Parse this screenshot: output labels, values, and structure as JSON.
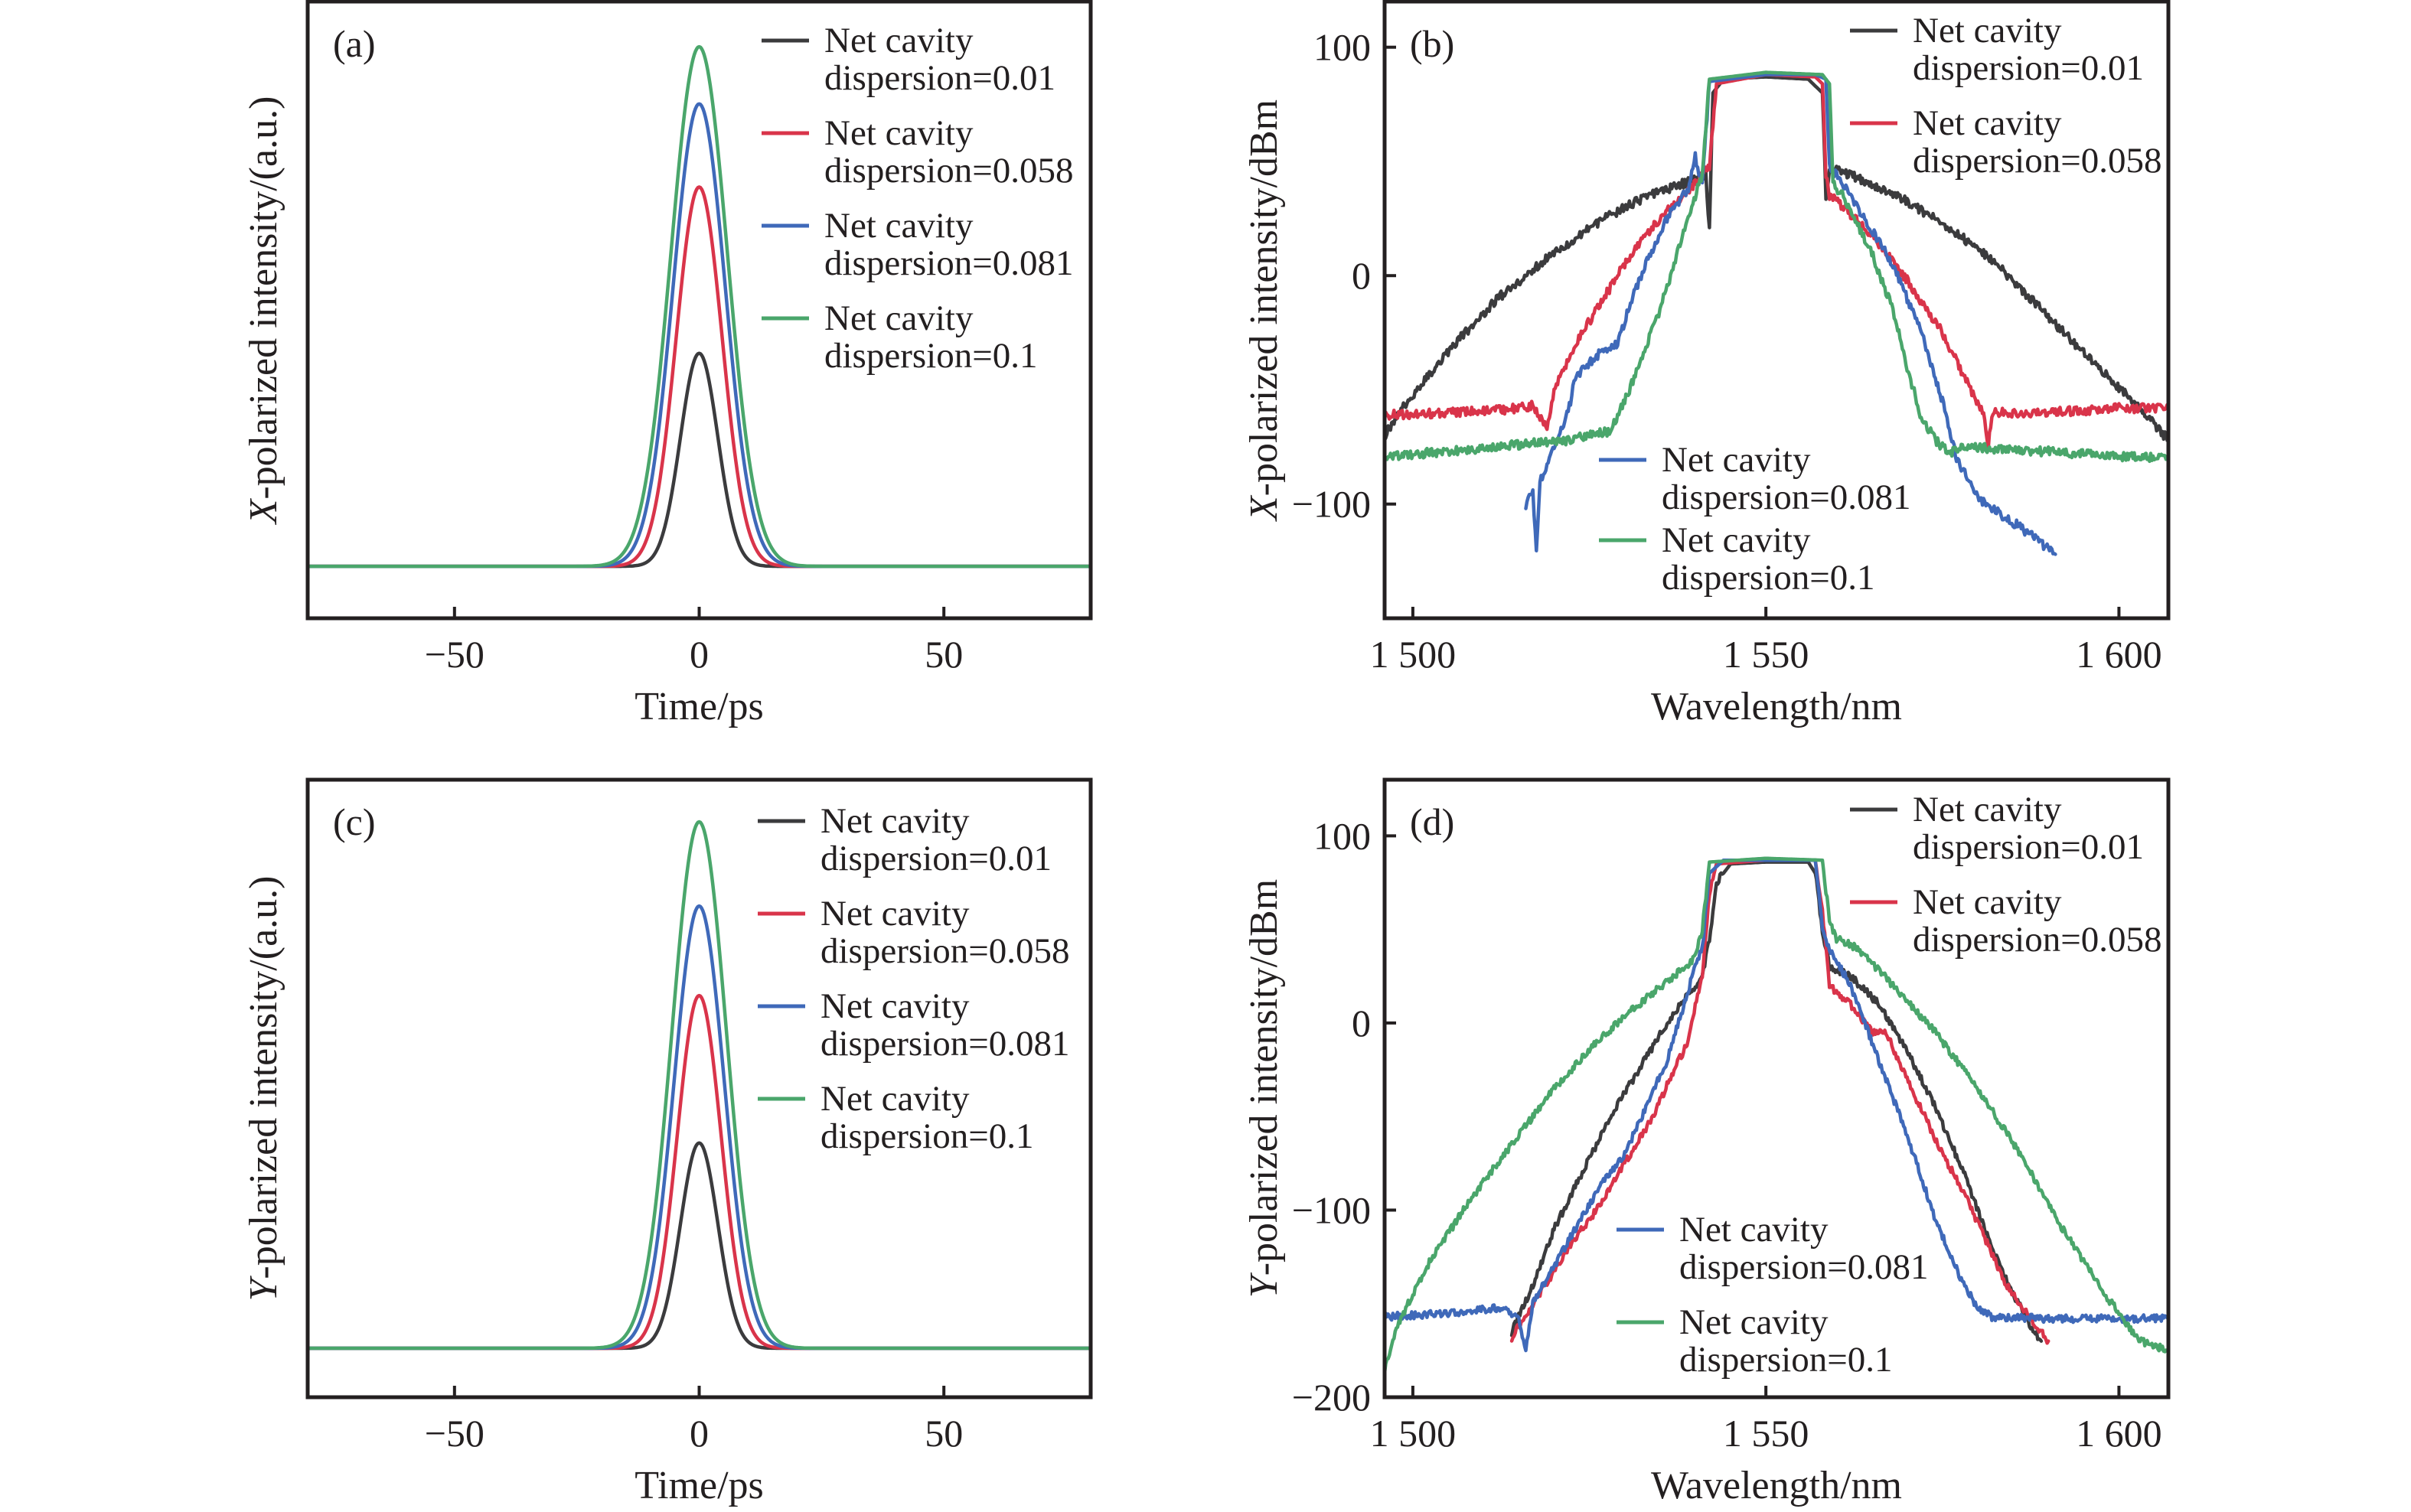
{
  "colors": {
    "d001": "#3b3b3d",
    "d0058": "#d9344a",
    "d0081": "#3f69b9",
    "d01": "#4aa66b"
  },
  "legend_labels": [
    {
      "key": "d001",
      "line1": "Net cavity",
      "line2": "dispersion=0.01"
    },
    {
      "key": "d0058",
      "line1": "Net cavity",
      "line2": "dispersion=0.058"
    },
    {
      "key": "d0081",
      "line1": "Net cavity",
      "line2": "dispersion=0.081"
    },
    {
      "key": "d01",
      "line1": "Net cavity",
      "line2": "dispersion=0.1"
    }
  ],
  "chart_data": [
    {
      "id": "a",
      "type": "line",
      "panel_label": "(a)",
      "xlabel": "Time/ps",
      "ylabel_italic": "X",
      "ylabel_rest": "-polarized intensity/(a.u.)",
      "xlim": [
        -80,
        80
      ],
      "ylim": [
        -0.1,
        1.087
      ],
      "xticks": [
        -50,
        0,
        50
      ],
      "xtick_labels": [
        "−50",
        "0",
        "50"
      ],
      "yticks": [],
      "ytick_labels": [],
      "grid": false,
      "legend_placement": "top-right",
      "series": [
        {
          "key": "d001",
          "name": "Net cavity dispersion=0.01",
          "peak": 0.41,
          "fwhm_ps": 9
        },
        {
          "key": "d0058",
          "name": "Net cavity dispersion=0.058",
          "peak": 0.73,
          "fwhm_ps": 11
        },
        {
          "key": "d0081",
          "name": "Net cavity dispersion=0.081",
          "peak": 0.89,
          "fwhm_ps": 12.5
        },
        {
          "key": "d01",
          "name": "Net cavity dispersion=0.1",
          "peak": 1.0,
          "fwhm_ps": 13.5
        }
      ]
    },
    {
      "id": "b",
      "type": "line",
      "panel_label": "(b)",
      "xlabel": "Wavelength/nm",
      "ylabel_italic": "X",
      "ylabel_rest": "-polarized intensity/dBm",
      "xlim": [
        1496,
        1607
      ],
      "ylim": [
        -150,
        120
      ],
      "xticks": [
        1500,
        1550,
        1600
      ],
      "xtick_labels": [
        "1 500",
        "1 550",
        "1 600"
      ],
      "yticks": [
        100,
        0,
        -100
      ],
      "ytick_labels": [
        "100",
        "0",
        "−100"
      ],
      "grid": false,
      "legend_placement": "top-right and bottom-center",
      "series": [
        {
          "key": "d001",
          "name": "Net cavity dispersion=0.01",
          "points": [
            [
              1496,
              -70
            ],
            [
              1498,
              -60
            ],
            [
              1505,
              -33
            ],
            [
              1512,
              -10
            ],
            [
              1520,
              10
            ],
            [
              1527,
              25
            ],
            [
              1534,
              36
            ],
            [
              1540,
              42
            ],
            [
              1541.5,
              44
            ],
            [
              1542,
              20
            ],
            [
              1542.5,
              80
            ],
            [
              1544,
              86
            ],
            [
              1550,
              87
            ],
            [
              1556,
              86
            ],
            [
              1558,
              80
            ],
            [
              1558.5,
              35
            ],
            [
              1559,
              47
            ],
            [
              1562,
              44
            ],
            [
              1568,
              36
            ],
            [
              1575,
              23
            ],
            [
              1582,
              7
            ],
            [
              1590,
              -18
            ],
            [
              1597,
              -40
            ],
            [
              1603,
              -58
            ],
            [
              1607,
              -72
            ]
          ]
        },
        {
          "key": "d0058",
          "name": "Net cavity dispersion=0.058",
          "points": [
            [
              1496,
              -61
            ],
            [
              1505,
              -60
            ],
            [
              1512,
              -59
            ],
            [
              1517,
              -57
            ],
            [
              1519,
              -66
            ],
            [
              1520,
              -50
            ],
            [
              1523,
              -30
            ],
            [
              1527,
              -10
            ],
            [
              1531,
              10
            ],
            [
              1535,
              25
            ],
            [
              1539,
              37
            ],
            [
              1542,
              48
            ],
            [
              1543,
              84
            ],
            [
              1550,
              88
            ],
            [
              1557,
              87
            ],
            [
              1558,
              84
            ],
            [
              1558.5,
              45
            ],
            [
              1559,
              35
            ],
            [
              1561,
              30
            ],
            [
              1565,
              18
            ],
            [
              1570,
              -2
            ],
            [
              1575,
              -25
            ],
            [
              1579,
              -50
            ],
            [
              1581,
              -62
            ],
            [
              1581.5,
              -75
            ],
            [
              1582,
              -60
            ],
            [
              1590,
              -60
            ],
            [
              1600,
              -58
            ],
            [
              1607,
              -58
            ]
          ]
        },
        {
          "key": "d0081",
          "name": "Net cavity dispersion=0.081",
          "points": [
            [
              1516,
              -100
            ],
            [
              1517,
              -95
            ],
            [
              1517.5,
              -122
            ],
            [
              1518,
              -90
            ],
            [
              1520,
              -75
            ],
            [
              1522,
              -60
            ],
            [
              1523,
              -45
            ],
            [
              1526,
              -35
            ],
            [
              1529,
              -30
            ],
            [
              1531,
              -10
            ],
            [
              1533,
              5
            ],
            [
              1536,
              25
            ],
            [
              1539,
              38
            ],
            [
              1540,
              52
            ],
            [
              1541,
              40
            ],
            [
              1542,
              85
            ],
            [
              1550,
              88
            ],
            [
              1557,
              88
            ],
            [
              1558.5,
              86
            ],
            [
              1559,
              48
            ],
            [
              1561,
              40
            ],
            [
              1564,
              25
            ],
            [
              1568,
              5
            ],
            [
              1572,
              -25
            ],
            [
              1575,
              -55
            ],
            [
              1577,
              -80
            ],
            [
              1580,
              -97
            ],
            [
              1582,
              -102
            ],
            [
              1586,
              -110
            ],
            [
              1591,
              -122
            ]
          ]
        },
        {
          "key": "d01",
          "name": "Net cavity dispersion=0.1",
          "points": [
            [
              1496,
              -79
            ],
            [
              1505,
              -77
            ],
            [
              1515,
              -74
            ],
            [
              1522,
              -72
            ],
            [
              1526,
              -69
            ],
            [
              1528,
              -68
            ],
            [
              1530,
              -55
            ],
            [
              1532,
              -40
            ],
            [
              1535,
              -15
            ],
            [
              1537,
              5
            ],
            [
              1539,
              25
            ],
            [
              1541,
              45
            ],
            [
              1542,
              86
            ],
            [
              1550,
              89
            ],
            [
              1558,
              88
            ],
            [
              1559,
              84
            ],
            [
              1559.5,
              40
            ],
            [
              1561,
              35
            ],
            [
              1565,
              10
            ],
            [
              1568,
              -15
            ],
            [
              1570,
              -40
            ],
            [
              1572,
              -62
            ],
            [
              1574,
              -72
            ],
            [
              1576,
              -78
            ],
            [
              1578,
              -75
            ],
            [
              1590,
              -77
            ],
            [
              1600,
              -79
            ],
            [
              1607,
              -80
            ]
          ]
        }
      ]
    },
    {
      "id": "c",
      "type": "line",
      "panel_label": "(c)",
      "xlabel": "Time/ps",
      "ylabel_italic": "Y",
      "ylabel_rest": "-polarized intensity/(a.u.)",
      "xlim": [
        -80,
        80
      ],
      "ylim": [
        -0.093,
        1.08
      ],
      "xticks": [
        -50,
        0,
        50
      ],
      "xtick_labels": [
        "−50",
        "0",
        "50"
      ],
      "yticks": [],
      "ytick_labels": [],
      "grid": false,
      "legend_placement": "top-right",
      "series": [
        {
          "key": "d001",
          "name": "Net cavity dispersion=0.01",
          "peak": 0.39,
          "fwhm_ps": 9
        },
        {
          "key": "d0058",
          "name": "Net cavity dispersion=0.058",
          "peak": 0.67,
          "fwhm_ps": 10.5
        },
        {
          "key": "d0081",
          "name": "Net cavity dispersion=0.081",
          "peak": 0.84,
          "fwhm_ps": 12
        },
        {
          "key": "d01",
          "name": "Net cavity dispersion=0.1",
          "peak": 1.0,
          "fwhm_ps": 13
        }
      ]
    },
    {
      "id": "d",
      "type": "line",
      "panel_label": "(d)",
      "xlabel": "Wavelength/nm",
      "ylabel_italic": "Y",
      "ylabel_rest": "-polarized intensity/dBm",
      "xlim": [
        1496,
        1607
      ],
      "ylim": [
        -200,
        130
      ],
      "xticks": [
        1500,
        1550,
        1600
      ],
      "xtick_labels": [
        "1 500",
        "1 550",
        "1 600"
      ],
      "yticks": [
        100,
        0,
        -100,
        -200
      ],
      "ytick_labels": [
        "100",
        "0",
        "−100",
        "−200"
      ],
      "grid": false,
      "legend_placement": "top-right and bottom-center",
      "series": [
        {
          "key": "d001",
          "name": "Net cavity dispersion=0.01",
          "points": [
            [
              1514,
              -165
            ],
            [
              1517,
              -140
            ],
            [
              1520,
              -110
            ],
            [
              1524,
              -80
            ],
            [
              1528,
              -50
            ],
            [
              1532,
              -25
            ],
            [
              1536,
              0
            ],
            [
              1539,
              15
            ],
            [
              1541,
              25
            ],
            [
              1542,
              45
            ],
            [
              1543,
              75
            ],
            [
              1545,
              85
            ],
            [
              1550,
              86
            ],
            [
              1556,
              86
            ],
            [
              1557,
              80
            ],
            [
              1558,
              50
            ],
            [
              1559,
              30
            ],
            [
              1562,
              25
            ],
            [
              1566,
              10
            ],
            [
              1570,
              -15
            ],
            [
              1574,
              -45
            ],
            [
              1578,
              -80
            ],
            [
              1582,
              -120
            ],
            [
              1585,
              -145
            ],
            [
              1588,
              -165
            ],
            [
              1589,
              -170
            ]
          ]
        },
        {
          "key": "d0058",
          "name": "Net cavity dispersion=0.058",
          "points": [
            [
              1514,
              -168
            ],
            [
              1518,
              -145
            ],
            [
              1522,
              -120
            ],
            [
              1526,
              -100
            ],
            [
              1530,
              -75
            ],
            [
              1534,
              -50
            ],
            [
              1537,
              -25
            ],
            [
              1539,
              -10
            ],
            [
              1540,
              10
            ],
            [
              1541,
              25
            ],
            [
              1542,
              70
            ],
            [
              1543,
              85
            ],
            [
              1550,
              87
            ],
            [
              1557,
              87
            ],
            [
              1558,
              60
            ],
            [
              1559,
              20
            ],
            [
              1562,
              10
            ],
            [
              1565,
              -5
            ],
            [
              1567,
              -5
            ],
            [
              1570,
              -30
            ],
            [
              1575,
              -70
            ],
            [
              1578,
              -90
            ],
            [
              1581,
              -115
            ],
            [
              1584,
              -140
            ],
            [
              1587,
              -155
            ],
            [
              1590,
              -170
            ]
          ]
        },
        {
          "key": "d0081",
          "name": "Net cavity dispersion=0.081",
          "points": [
            [
              1496,
              -157
            ],
            [
              1505,
              -155
            ],
            [
              1513,
              -152
            ],
            [
              1515,
              -158
            ],
            [
              1516,
              -175
            ],
            [
              1517,
              -150
            ],
            [
              1520,
              -130
            ],
            [
              1523,
              -110
            ],
            [
              1527,
              -85
            ],
            [
              1530,
              -70
            ],
            [
              1533,
              -45
            ],
            [
              1536,
              -20
            ],
            [
              1538,
              5
            ],
            [
              1540,
              30
            ],
            [
              1541,
              40
            ],
            [
              1542,
              80
            ],
            [
              1544,
              87
            ],
            [
              1550,
              87
            ],
            [
              1557,
              87
            ],
            [
              1558,
              50
            ],
            [
              1559,
              40
            ],
            [
              1562,
              20
            ],
            [
              1566,
              -20
            ],
            [
              1570,
              -60
            ],
            [
              1574,
              -105
            ],
            [
              1578,
              -140
            ],
            [
              1580,
              -152
            ],
            [
              1582,
              -157
            ],
            [
              1590,
              -158
            ],
            [
              1600,
              -158
            ],
            [
              1607,
              -158
            ]
          ]
        },
        {
          "key": "d01",
          "name": "Net cavity dispersion=0.1",
          "points": [
            [
              1496,
              -185
            ],
            [
              1498,
              -160
            ],
            [
              1502,
              -130
            ],
            [
              1508,
              -95
            ],
            [
              1514,
              -65
            ],
            [
              1520,
              -35
            ],
            [
              1526,
              -10
            ],
            [
              1532,
              10
            ],
            [
              1537,
              25
            ],
            [
              1540,
              35
            ],
            [
              1541,
              50
            ],
            [
              1542,
              86
            ],
            [
              1550,
              88
            ],
            [
              1558,
              87
            ],
            [
              1559,
              55
            ],
            [
              1560,
              45
            ],
            [
              1563,
              40
            ],
            [
              1568,
              20
            ],
            [
              1574,
              -5
            ],
            [
              1580,
              -35
            ],
            [
              1586,
              -70
            ],
            [
              1592,
              -110
            ],
            [
              1598,
              -145
            ],
            [
              1603,
              -170
            ],
            [
              1607,
              -175
            ]
          ]
        }
      ]
    }
  ]
}
